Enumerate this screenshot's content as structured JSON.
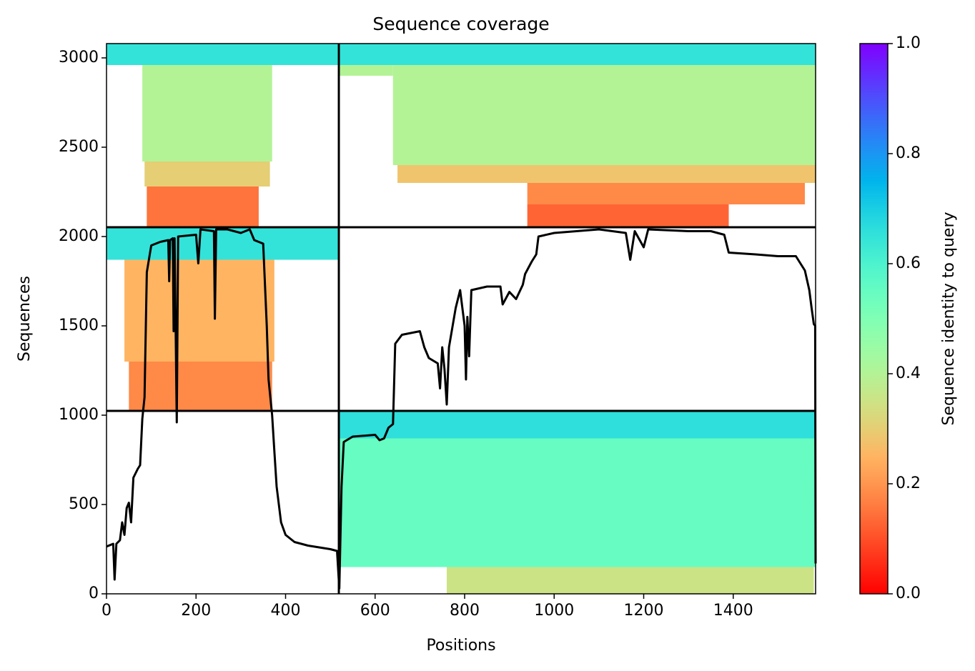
{
  "chart_data": {
    "type": "coverage",
    "title": "Sequence coverage",
    "x_label": "Positions",
    "y_label": "Sequences",
    "xlim": [
      0,
      1584
    ],
    "ylim": [
      0,
      3080
    ],
    "xticks": [
      0,
      200,
      400,
      600,
      800,
      1000,
      1200,
      1400
    ],
    "yticks": [
      0,
      500,
      1000,
      1500,
      2000,
      2500,
      3000
    ],
    "dividers": {
      "x": [
        519
      ],
      "y": [
        1024,
        2052
      ]
    },
    "blocks": [
      {
        "x": [
          0,
          519
        ],
        "y": [
          2960,
          3080
        ],
        "identity": 0.65
      },
      {
        "x": [
          80,
          370
        ],
        "y": [
          2420,
          2960
        ],
        "identity": 0.4
      },
      {
        "x": [
          85,
          365
        ],
        "y": [
          2280,
          2420
        ],
        "identity": 0.3
      },
      {
        "x": [
          90,
          340
        ],
        "y": [
          2052,
          2280
        ],
        "identity": 0.15
      },
      {
        "x": [
          519,
          1584
        ],
        "y": [
          2960,
          3080
        ],
        "identity": 0.65
      },
      {
        "x": [
          519,
          640
        ],
        "y": [
          2900,
          2960
        ],
        "identity": 0.4
      },
      {
        "x": [
          640,
          1584
        ],
        "y": [
          2400,
          2960
        ],
        "identity": 0.4
      },
      {
        "x": [
          650,
          1584
        ],
        "y": [
          2300,
          2400
        ],
        "identity": 0.28
      },
      {
        "x": [
          940,
          1560
        ],
        "y": [
          2180,
          2300
        ],
        "identity": 0.18
      },
      {
        "x": [
          940,
          1390
        ],
        "y": [
          2052,
          2180
        ],
        "identity": 0.13
      },
      {
        "x": [
          0,
          519
        ],
        "y": [
          1870,
          2052
        ],
        "identity": 0.65
      },
      {
        "x": [
          40,
          375
        ],
        "y": [
          1300,
          1870
        ],
        "identity": 0.25
      },
      {
        "x": [
          50,
          370
        ],
        "y": [
          1024,
          1300
        ],
        "identity": 0.18
      },
      {
        "x": [
          519,
          1584
        ],
        "y": [
          870,
          1024
        ],
        "identity": 0.66
      },
      {
        "x": [
          519,
          1584
        ],
        "y": [
          150,
          870
        ],
        "identity": 0.55
      },
      {
        "x": [
          760,
          1580
        ],
        "y": [
          0,
          150
        ],
        "identity": 0.35
      }
    ],
    "coverage": {
      "x": [
        0,
        15,
        18,
        22,
        30,
        35,
        40,
        45,
        50,
        55,
        60,
        70,
        75,
        80,
        85,
        90,
        100,
        120,
        138,
        140,
        142,
        148,
        150,
        152,
        157,
        160,
        200,
        205,
        210,
        240,
        242,
        245,
        270,
        300,
        320,
        330,
        350,
        358,
        362,
        370,
        375,
        380,
        390,
        400,
        420,
        450,
        500,
        515,
        520,
        525,
        530,
        550,
        600,
        610,
        620,
        630,
        640,
        645,
        660,
        700,
        710,
        720,
        740,
        745,
        750,
        755,
        760,
        765,
        780,
        790,
        800,
        803,
        806,
        810,
        815,
        850,
        880,
        885,
        900,
        915,
        930,
        935,
        950,
        960,
        965,
        1000,
        1100,
        1160,
        1170,
        1180,
        1200,
        1210,
        1300,
        1350,
        1380,
        1390,
        1450,
        1500,
        1540,
        1560,
        1570,
        1575,
        1580,
        1583,
        1584
      ],
      "values": [
        265,
        280,
        80,
        280,
        300,
        400,
        330,
        480,
        510,
        400,
        650,
        700,
        720,
        980,
        1100,
        1800,
        1950,
        1970,
        1980,
        1750,
        1980,
        1990,
        1470,
        1990,
        960,
        2000,
        2010,
        1850,
        2040,
        2030,
        1540,
        2040,
        2040,
        2020,
        2040,
        1980,
        1960,
        1500,
        1200,
        1000,
        800,
        600,
        400,
        330,
        290,
        270,
        250,
        240,
        30,
        600,
        850,
        880,
        890,
        860,
        870,
        930,
        950,
        1400,
        1450,
        1470,
        1380,
        1320,
        1290,
        1150,
        1380,
        1260,
        1060,
        1380,
        1600,
        1700,
        1500,
        1200,
        1550,
        1330,
        1700,
        1720,
        1720,
        1620,
        1690,
        1650,
        1730,
        1790,
        1860,
        1900,
        2000,
        2020,
        2040,
        2020,
        1870,
        2030,
        1940,
        2040,
        2030,
        2030,
        2010,
        1910,
        1900,
        1890,
        1890,
        1810,
        1700,
        1600,
        1510,
        1500,
        170
      ]
    },
    "colorbar": {
      "label": "Sequence identity to query",
      "lim": [
        0,
        1
      ],
      "ticks": [
        {
          "value": 0,
          "label": "0.0"
        },
        0.2,
        0.4,
        0.6,
        0.8,
        {
          "value": 1,
          "label": "1.0"
        }
      ]
    }
  }
}
